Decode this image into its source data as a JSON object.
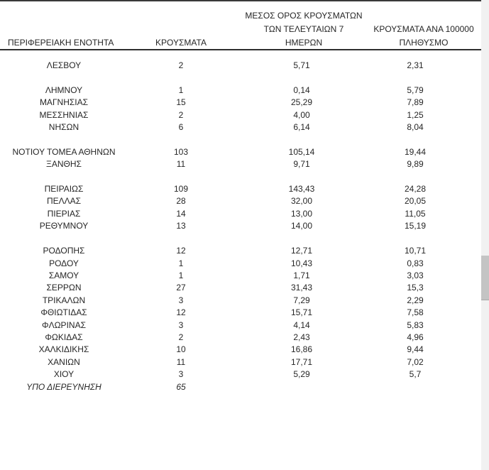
{
  "header": {
    "col1": "ΠΕΡΙΦΕΡΕΙΑΚΗ ΕΝΟΤΗΤΑ",
    "col2": "ΚΡΟΥΣΜΑΤΑ",
    "col3_line1": "ΜΕΣΟΣ ΟΡΟΣ ΚΡΟΥΣΜΑΤΩΝ",
    "col3_line2": "ΤΩΝ ΤΕΛΕΥΤΑΙΩΝ 7",
    "col3_line3": "ΗΜΕΡΩΝ",
    "col4_line1": "ΚΡΟΥΣΜΑΤΑ ΑΝΑ 100000",
    "col4_line2": "ΠΛΗΘΥΣΜΟ"
  },
  "table": {
    "columns": [
      "ΠΕΡΙΦΕΡΕΙΑΚΗ ΕΝΟΤΗΤΑ",
      "ΚΡΟΥΣΜΑΤΑ",
      "ΜΕΣΟΣ ΟΡΟΣ ΚΡΟΥΣΜΑΤΩΝ ΤΩΝ ΤΕΛΕΥΤΑΙΩΝ 7 ΗΜΕΡΩΝ",
      "ΚΡΟΥΣΜΑΤΑ ΑΝΑ 100000 ΠΛΗΘΥΣΜΟ"
    ],
    "rows": [
      {
        "region": "ΛΕΣΒΟΥ",
        "cases": "2",
        "avg7": "5,71",
        "per100k": "2,31"
      },
      {
        "blank": true
      },
      {
        "region": "ΛΗΜΝΟΥ",
        "cases": "1",
        "avg7": "0,14",
        "per100k": "5,79"
      },
      {
        "region": "ΜΑΓΝΗΣΙΑΣ",
        "cases": "15",
        "avg7": "25,29",
        "per100k": "7,89"
      },
      {
        "region": "ΜΕΣΣΗΝΙΑΣ",
        "cases": "2",
        "avg7": "4,00",
        "per100k": "1,25"
      },
      {
        "region": "ΝΗΣΩΝ",
        "cases": "6",
        "avg7": "6,14",
        "per100k": "8,04"
      },
      {
        "blank": true
      },
      {
        "region": "ΝΟΤΙΟΥ ΤΟΜΕΑ ΑΘΗΝΩΝ",
        "cases": "103",
        "avg7": "105,14",
        "per100k": "19,44"
      },
      {
        "region": "ΞΑΝΘΗΣ",
        "cases": "11",
        "avg7": "9,71",
        "per100k": "9,89"
      },
      {
        "blank": true
      },
      {
        "region": "ΠΕΙΡΑΙΩΣ",
        "cases": "109",
        "avg7": "143,43",
        "per100k": "24,28"
      },
      {
        "region": "ΠΕΛΛΑΣ",
        "cases": "28",
        "avg7": "32,00",
        "per100k": "20,05"
      },
      {
        "region": "ΠΙΕΡΙΑΣ",
        "cases": "14",
        "avg7": "13,00",
        "per100k": "11,05"
      },
      {
        "region": "ΡΕΘΥΜΝΟΥ",
        "cases": "13",
        "avg7": "14,00",
        "per100k": "15,19"
      },
      {
        "blank": true
      },
      {
        "region": "ΡΟΔΟΠΗΣ",
        "cases": "12",
        "avg7": "12,71",
        "per100k": "10,71"
      },
      {
        "region": "ΡΟΔΟΥ",
        "cases": "1",
        "avg7": "10,43",
        "per100k": "0,83"
      },
      {
        "region": "ΣΑΜΟΥ",
        "cases": "1",
        "avg7": "1,71",
        "per100k": "3,03"
      },
      {
        "region": "ΣΕΡΡΩΝ",
        "cases": "27",
        "avg7": "31,43",
        "per100k": "15,3"
      },
      {
        "region": "ΤΡΙΚΑΛΩΝ",
        "cases": "3",
        "avg7": "7,29",
        "per100k": "2,29"
      },
      {
        "region": "ΦΘΙΩΤΙΔΑΣ",
        "cases": "12",
        "avg7": "15,71",
        "per100k": "7,58"
      },
      {
        "region": "ΦΛΩΡΙΝΑΣ",
        "cases": "3",
        "avg7": "4,14",
        "per100k": "5,83"
      },
      {
        "region": "ΦΩΚΙΔΑΣ",
        "cases": "2",
        "avg7": "2,43",
        "per100k": "4,96"
      },
      {
        "region": "ΧΑΛΚΙΔΙΚΗΣ",
        "cases": "10",
        "avg7": "16,86",
        "per100k": "9,44"
      },
      {
        "region": "ΧΑΝΙΩΝ",
        "cases": "11",
        "avg7": "17,71",
        "per100k": "7,02"
      },
      {
        "region": "ΧΙΟΥ",
        "cases": "3",
        "avg7": "5,29",
        "per100k": "5,7"
      },
      {
        "region": "ΥΠΟ ΔΙΕΡΕΥΝΗΣΗ",
        "cases": "65",
        "avg7": "",
        "per100k": "",
        "italic": true
      }
    ]
  },
  "colors": {
    "text": "#262626",
    "top_border": "#3a3a3a",
    "header_underline": "#2f2f2f",
    "scrollbar_track": "#f1f1f1",
    "scrollbar_thumb": "#c4c4c4",
    "background": "#ffffff"
  }
}
